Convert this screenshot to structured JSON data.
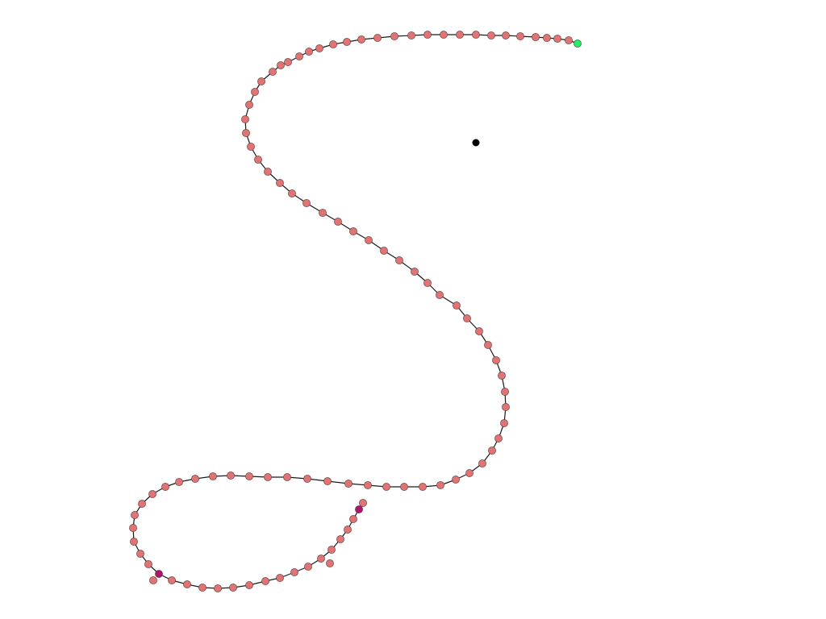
{
  "colors": {
    "background": "#ffffff",
    "path_line": "#1a1a1a",
    "node_default": "#e07474",
    "node_start": "#22ee66",
    "node_selected": "#b0126e",
    "target": "#000000"
  }
}
